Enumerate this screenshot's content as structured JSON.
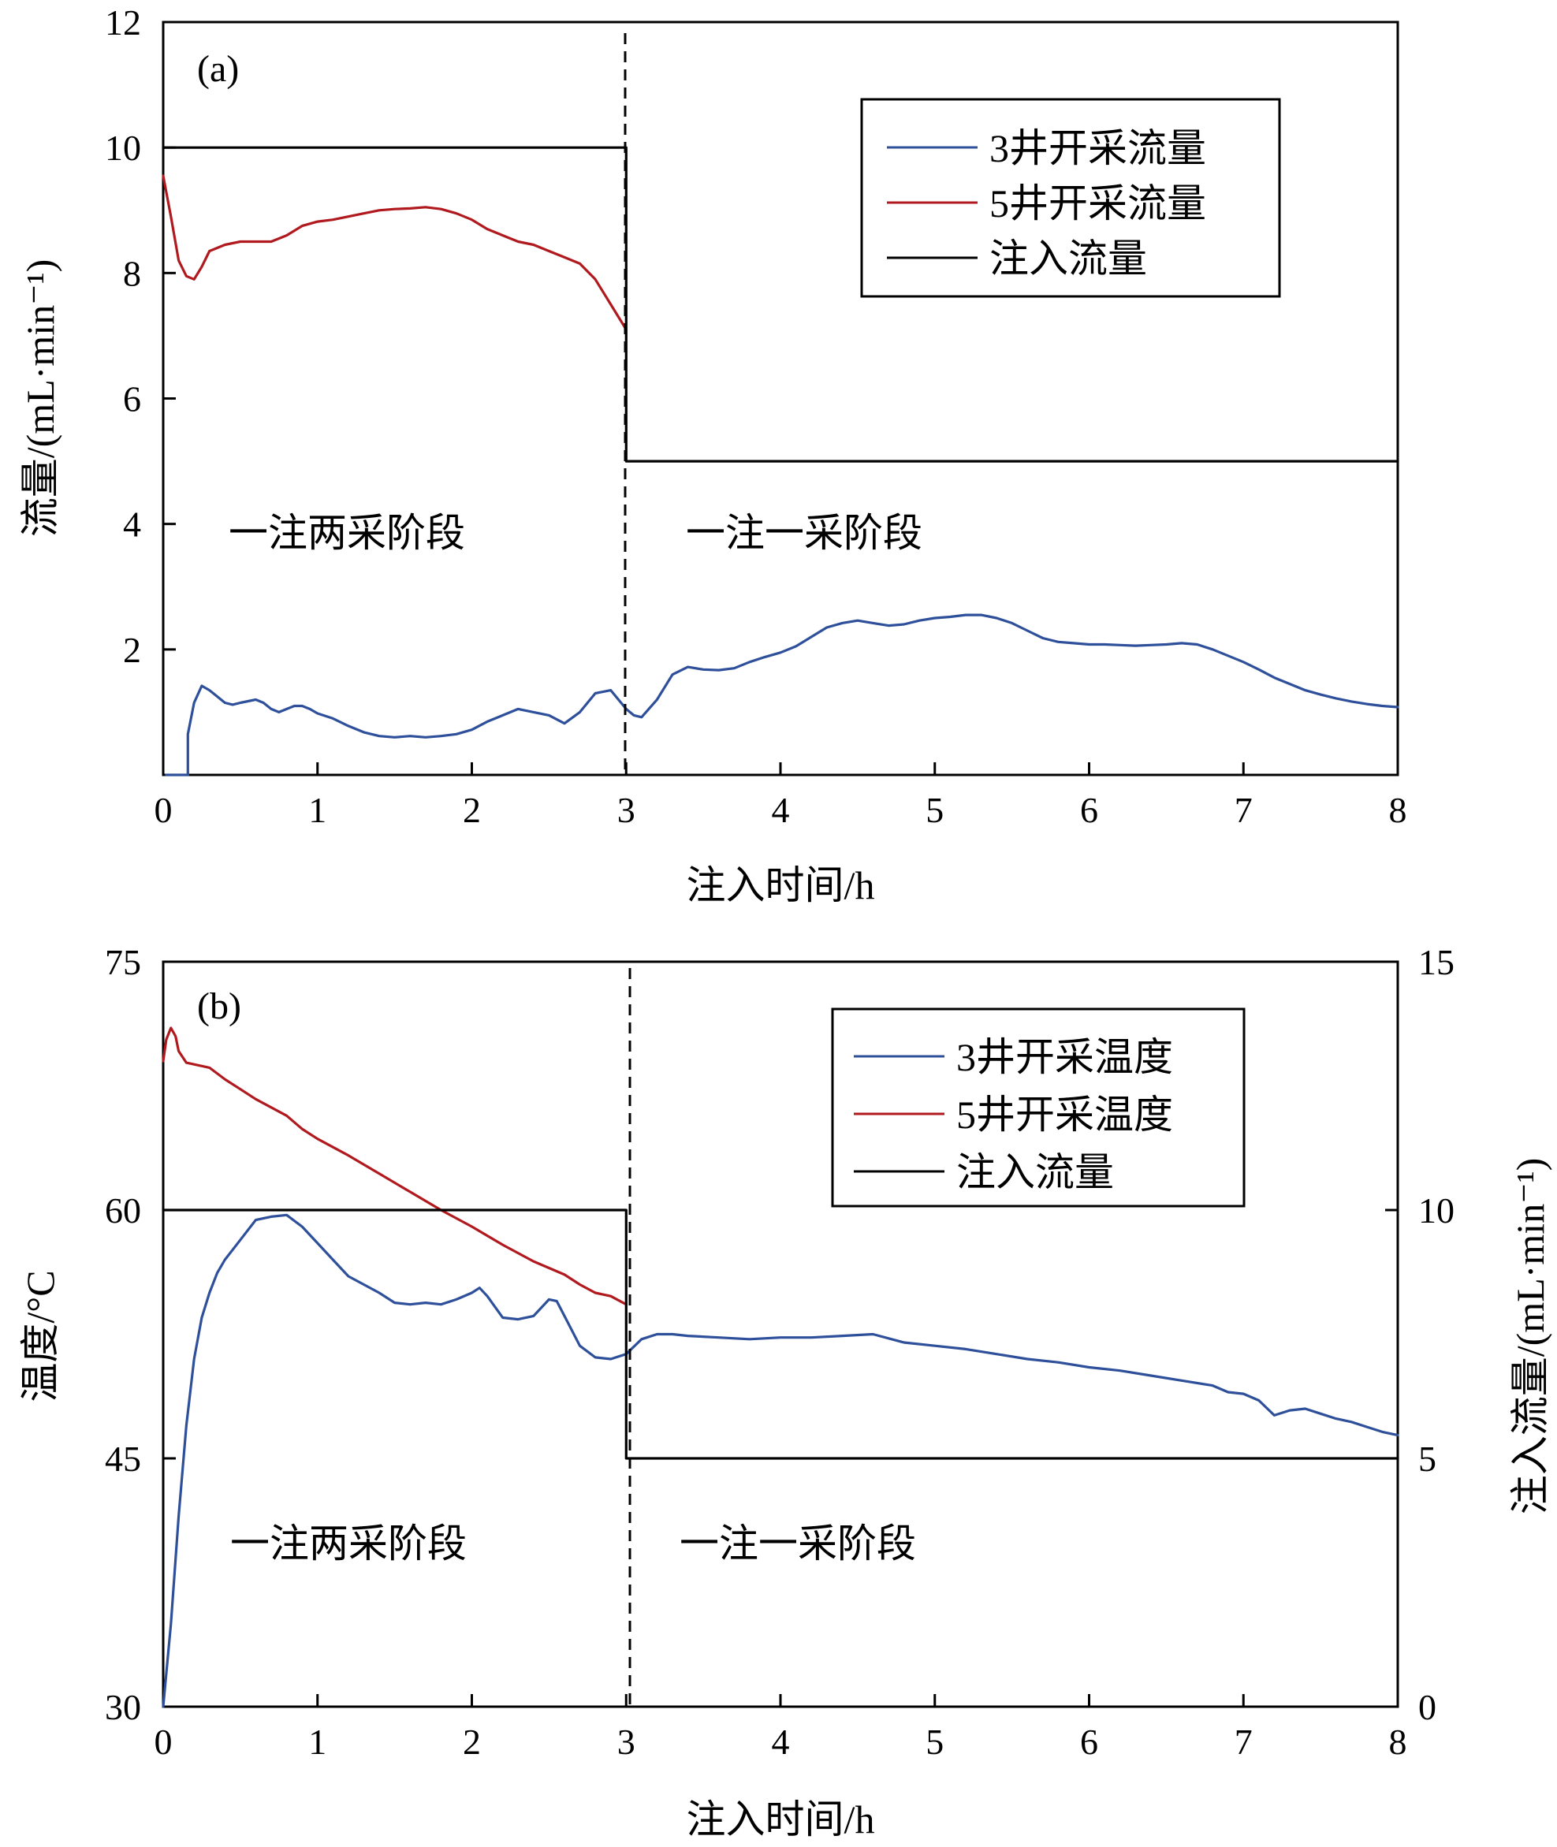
{
  "chart_data": [
    {
      "type": "line",
      "panel": "(a)",
      "xlabel": "注入时间/h",
      "ylabel": "流量/(mL·min⁻¹)",
      "xlim": [
        0,
        8
      ],
      "ylim": [
        0,
        12
      ],
      "xticks": [
        "0",
        "1",
        "2",
        "3",
        "4",
        "5",
        "6",
        "7",
        "8"
      ],
      "yticks": [
        "12",
        "10",
        "8",
        "6",
        "4",
        "2"
      ],
      "grid": false,
      "legend_position": "top-right",
      "annotations": [
        {
          "text": "一注两采阶段",
          "x": 0.42,
          "y": 3.85
        },
        {
          "text": "一注一采阶段",
          "x": 3.4,
          "y": 3.85
        }
      ],
      "divider_x": 3,
      "series": [
        {
          "name": "3井开采流量",
          "color": "#2e4f9a",
          "axis": "left",
          "x": [
            0.02,
            0.16,
            0.16,
            0.2,
            0.25,
            0.3,
            0.35,
            0.4,
            0.45,
            0.5,
            0.6,
            0.65,
            0.7,
            0.75,
            0.8,
            0.85,
            0.9,
            0.95,
            1.0,
            1.1,
            1.2,
            1.3,
            1.4,
            1.5,
            1.6,
            1.7,
            1.8,
            1.9,
            2.0,
            2.1,
            2.2,
            2.3,
            2.4,
            2.5,
            2.6,
            2.7,
            2.8,
            2.9,
            3.0,
            3.05,
            3.1,
            3.2,
            3.3,
            3.4,
            3.5,
            3.6,
            3.7,
            3.8,
            3.9,
            4.0,
            4.1,
            4.2,
            4.3,
            4.4,
            4.5,
            4.6,
            4.7,
            4.8,
            4.9,
            5.0,
            5.1,
            5.2,
            5.3,
            5.4,
            5.5,
            5.6,
            5.7,
            5.8,
            5.9,
            6.0,
            6.1,
            6.2,
            6.3,
            6.4,
            6.5,
            6.6,
            6.7,
            6.8,
            6.9,
            7.0,
            7.1,
            7.2,
            7.3,
            7.4,
            7.5,
            7.6,
            7.7,
            7.8,
            7.9,
            8.0
          ],
          "y": [
            0.0,
            0.0,
            0.65,
            1.15,
            1.42,
            1.35,
            1.25,
            1.15,
            1.12,
            1.15,
            1.2,
            1.15,
            1.05,
            1.0,
            1.05,
            1.1,
            1.1,
            1.05,
            0.98,
            0.9,
            0.78,
            0.68,
            0.62,
            0.6,
            0.62,
            0.6,
            0.62,
            0.65,
            0.72,
            0.85,
            0.95,
            1.05,
            1.0,
            0.95,
            0.82,
            1.0,
            1.3,
            1.35,
            1.05,
            0.95,
            0.92,
            1.2,
            1.6,
            1.72,
            1.68,
            1.67,
            1.7,
            1.8,
            1.88,
            1.95,
            2.05,
            2.2,
            2.35,
            2.42,
            2.46,
            2.42,
            2.38,
            2.4,
            2.46,
            2.5,
            2.52,
            2.55,
            2.55,
            2.5,
            2.42,
            2.3,
            2.18,
            2.12,
            2.1,
            2.08,
            2.08,
            2.07,
            2.06,
            2.07,
            2.08,
            2.1,
            2.08,
            2.0,
            1.9,
            1.8,
            1.68,
            1.55,
            1.45,
            1.35,
            1.28,
            1.22,
            1.17,
            1.13,
            1.1,
            1.08
          ]
        },
        {
          "name": "5井开采流量",
          "color": "#b0191e",
          "axis": "left",
          "x": [
            0.0,
            0.05,
            0.1,
            0.15,
            0.2,
            0.25,
            0.3,
            0.4,
            0.5,
            0.6,
            0.7,
            0.8,
            0.9,
            1.0,
            1.1,
            1.2,
            1.3,
            1.4,
            1.5,
            1.6,
            1.7,
            1.8,
            1.9,
            2.0,
            2.1,
            2.2,
            2.3,
            2.4,
            2.5,
            2.6,
            2.7,
            2.8,
            2.9,
            3.0
          ],
          "y": [
            9.55,
            8.9,
            8.2,
            7.95,
            7.9,
            8.1,
            8.35,
            8.45,
            8.5,
            8.5,
            8.5,
            8.6,
            8.75,
            8.82,
            8.85,
            8.9,
            8.95,
            9.0,
            9.02,
            9.03,
            9.05,
            9.02,
            8.95,
            8.85,
            8.7,
            8.6,
            8.5,
            8.45,
            8.35,
            8.25,
            8.15,
            7.9,
            7.5,
            7.1
          ]
        },
        {
          "name": "注入流量",
          "color": "#000000",
          "axis": "left",
          "x": [
            0,
            3,
            3,
            8
          ],
          "y": [
            10,
            10,
            5,
            5
          ]
        }
      ]
    },
    {
      "type": "line",
      "panel": "(b)",
      "xlabel": "注入时间/h",
      "ylabel": "温度/°C",
      "y2label": "注入流量/(mL·min⁻¹)",
      "xlim": [
        0,
        8
      ],
      "ylim": [
        30,
        75
      ],
      "y2lim": [
        0,
        15
      ],
      "xticks": [
        "0",
        "1",
        "2",
        "3",
        "4",
        "5",
        "6",
        "7",
        "8"
      ],
      "yticks": [
        "75",
        "60",
        "45",
        "30"
      ],
      "y2ticks": [
        "15",
        "10",
        "5",
        "0"
      ],
      "grid": false,
      "legend_position": "top-right",
      "annotations": [
        {
          "text": "一注两采阶段",
          "x": 0.42,
          "y": 39.5
        },
        {
          "text": "一注一采阶段",
          "x": 3.35,
          "y": 39.5
        }
      ],
      "divider_x": 3,
      "series": [
        {
          "name": "3井开采温度",
          "color": "#2e4f9a",
          "axis": "left",
          "x": [
            0.0,
            0.05,
            0.1,
            0.15,
            0.2,
            0.25,
            0.3,
            0.35,
            0.4,
            0.5,
            0.6,
            0.7,
            0.8,
            0.9,
            1.0,
            1.1,
            1.2,
            1.3,
            1.4,
            1.5,
            1.6,
            1.7,
            1.8,
            1.9,
            2.0,
            2.05,
            2.1,
            2.2,
            2.3,
            2.4,
            2.5,
            2.55,
            2.6,
            2.7,
            2.8,
            2.9,
            3.0,
            3.1,
            3.2,
            3.3,
            3.4,
            3.6,
            3.8,
            4.0,
            4.2,
            4.4,
            4.6,
            4.8,
            5.0,
            5.2,
            5.4,
            5.6,
            5.8,
            6.0,
            6.2,
            6.4,
            6.6,
            6.8,
            6.9,
            7.0,
            7.1,
            7.2,
            7.3,
            7.4,
            7.5,
            7.6,
            7.7,
            7.8,
            7.9,
            8.0
          ],
          "y": [
            30.0,
            35.0,
            41.5,
            47.0,
            51.0,
            53.5,
            55.0,
            56.2,
            57.0,
            58.2,
            59.4,
            59.6,
            59.7,
            59.0,
            58.0,
            57.0,
            56.0,
            55.5,
            55.0,
            54.4,
            54.3,
            54.4,
            54.3,
            54.6,
            55.0,
            55.3,
            54.8,
            53.5,
            53.4,
            53.6,
            54.6,
            54.5,
            53.6,
            51.8,
            51.1,
            51.0,
            51.3,
            52.2,
            52.5,
            52.5,
            52.4,
            52.3,
            52.2,
            52.3,
            52.3,
            52.4,
            52.5,
            52.0,
            51.8,
            51.6,
            51.3,
            51.0,
            50.8,
            50.5,
            50.3,
            50.0,
            49.7,
            49.4,
            49.0,
            48.9,
            48.5,
            47.6,
            47.9,
            48.0,
            47.7,
            47.4,
            47.2,
            46.9,
            46.6,
            46.4
          ]
        },
        {
          "name": "5井开采温度",
          "color": "#b0191e",
          "axis": "left",
          "x": [
            0.0,
            0.02,
            0.05,
            0.08,
            0.1,
            0.15,
            0.2,
            0.3,
            0.4,
            0.5,
            0.6,
            0.7,
            0.8,
            0.9,
            1.0,
            1.2,
            1.4,
            1.6,
            1.8,
            2.0,
            2.2,
            2.4,
            2.6,
            2.7,
            2.8,
            2.9,
            3.0
          ],
          "y": [
            69.0,
            70.3,
            71.0,
            70.5,
            69.6,
            68.9,
            68.8,
            68.6,
            67.9,
            67.3,
            66.7,
            66.2,
            65.7,
            64.9,
            64.3,
            63.3,
            62.2,
            61.1,
            60.0,
            59.0,
            57.9,
            56.9,
            56.1,
            55.5,
            55.0,
            54.8,
            54.3
          ]
        },
        {
          "name": "注入流量",
          "color": "#000000",
          "axis": "right",
          "x": [
            0,
            3,
            3,
            8
          ],
          "y": [
            10,
            10,
            5,
            5
          ]
        }
      ]
    }
  ]
}
